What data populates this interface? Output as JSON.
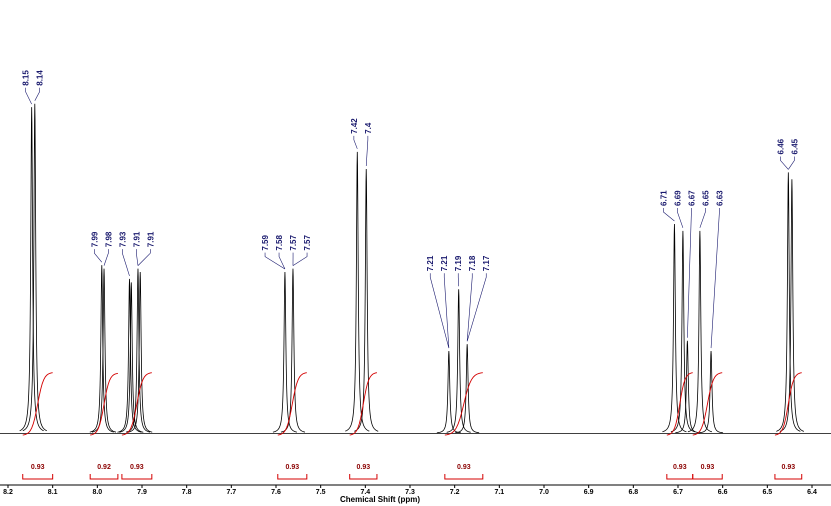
{
  "chart_data": {
    "type": "nmr",
    "x_label": "Chemical Shift (ppm)",
    "xlim": [
      8.2,
      6.4
    ],
    "xticks": [
      8.2,
      8.1,
      {
        "value": 8,
        "label": "8.0"
      },
      7.9,
      7.8,
      7.7,
      7.6,
      7.5,
      7.4,
      7.3,
      7.2,
      7.1,
      {
        "value": 7,
        "label": "7.0"
      },
      6.9,
      6.8,
      6.7,
      6.6,
      6.5,
      6.4
    ],
    "ylim": [
      0,
      100
    ],
    "color": "#000000",
    "integral_color": "#d40000",
    "peaks": [
      {
        "ppm": 8.147,
        "height": 95
      },
      {
        "ppm": 8.14,
        "height": 96
      },
      {
        "ppm": 7.99,
        "height": 49
      },
      {
        "ppm": 7.985,
        "height": 48
      },
      {
        "ppm": 7.928,
        "height": 45
      },
      {
        "ppm": 7.924,
        "height": 44
      },
      {
        "ppm": 7.909,
        "height": 48
      },
      {
        "ppm": 7.904,
        "height": 47
      },
      {
        "ppm": 7.58,
        "height": 47
      },
      {
        "ppm": 7.562,
        "height": 48
      },
      {
        "ppm": 7.418,
        "height": 82
      },
      {
        "ppm": 7.398,
        "height": 77
      },
      {
        "ppm": 7.213,
        "height": 24
      },
      {
        "ppm": 7.191,
        "height": 42
      },
      {
        "ppm": 7.172,
        "height": 26
      },
      {
        "ppm": 6.708,
        "height": 61
      },
      {
        "ppm": 6.689,
        "height": 59
      },
      {
        "ppm": 6.679,
        "height": 27
      },
      {
        "ppm": 6.651,
        "height": 59
      },
      {
        "ppm": 6.626,
        "height": 24
      },
      {
        "ppm": 6.453,
        "height": 76
      },
      {
        "ppm": 6.445,
        "height": 74
      }
    ],
    "peak_labels": [
      [
        8.15,
        8.14
      ],
      [
        7.99,
        7.98,
        7.93,
        7.91,
        7.91
      ],
      [
        7.59,
        7.58,
        7.57,
        7.57
      ],
      [
        7.42,
        7.4
      ],
      [
        7.21,
        7.21,
        7.19,
        7.18,
        7.17
      ],
      [
        6.71,
        6.69,
        6.67,
        6.65,
        6.63
      ],
      [
        6.46,
        6.45
      ]
    ],
    "integrals": [
      {
        "range": [
          8.167,
          8.1
        ],
        "value": 0.93
      },
      {
        "range": [
          8.016,
          7.954
        ],
        "value": 0.92
      },
      {
        "range": [
          7.945,
          7.878
        ],
        "value": 0.93
      },
      {
        "range": [
          7.596,
          7.531
        ],
        "value": 0.93
      },
      {
        "range": [
          7.435,
          7.374
        ],
        "value": 0.93
      },
      {
        "range": [
          7.222,
          7.137
        ],
        "value": 0.93
      },
      {
        "range": [
          6.725,
          6.667
        ],
        "value": 0.93
      },
      {
        "range": [
          6.667,
          6.601
        ],
        "value": 0.93
      },
      {
        "range": [
          6.483,
          6.423
        ],
        "value": 0.93
      }
    ]
  }
}
